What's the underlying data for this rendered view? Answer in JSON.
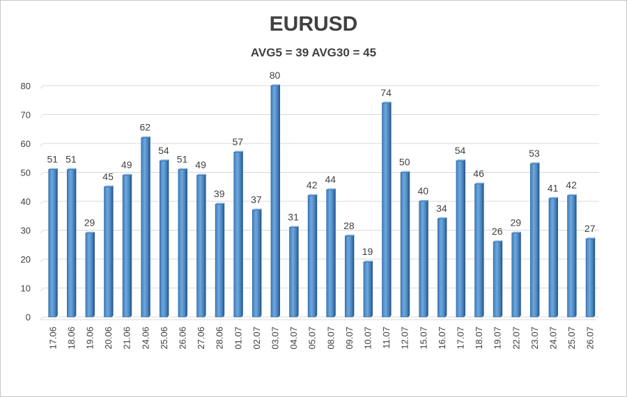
{
  "chart_data": {
    "type": "bar",
    "title": "EURUSD",
    "subtitle": "AVG5 = 39 AVG30 = 45",
    "categories": [
      "17.06",
      "18.06",
      "19.06",
      "20.06",
      "21.06",
      "24.06",
      "25.06",
      "26.06",
      "27.06",
      "28.06",
      "01.07",
      "02.07",
      "03.07",
      "04.07",
      "05.07",
      "08.07",
      "09.07",
      "10.07",
      "11.07",
      "12.07",
      "15.07",
      "16.07",
      "17.07",
      "18.07",
      "19.07",
      "22.07",
      "23.07",
      "24.07",
      "25.07",
      "26.07"
    ],
    "values": [
      51,
      51,
      29,
      45,
      49,
      62,
      54,
      51,
      49,
      39,
      57,
      37,
      80,
      31,
      42,
      44,
      28,
      19,
      74,
      50,
      40,
      34,
      54,
      46,
      26,
      29,
      53,
      41,
      42,
      27
    ],
    "ylim": [
      0,
      80
    ],
    "yticks": [
      0,
      10,
      20,
      30,
      40,
      50,
      60,
      70,
      80
    ],
    "grid": true,
    "data_labels": true,
    "bar_color": "#5b9bd5"
  }
}
